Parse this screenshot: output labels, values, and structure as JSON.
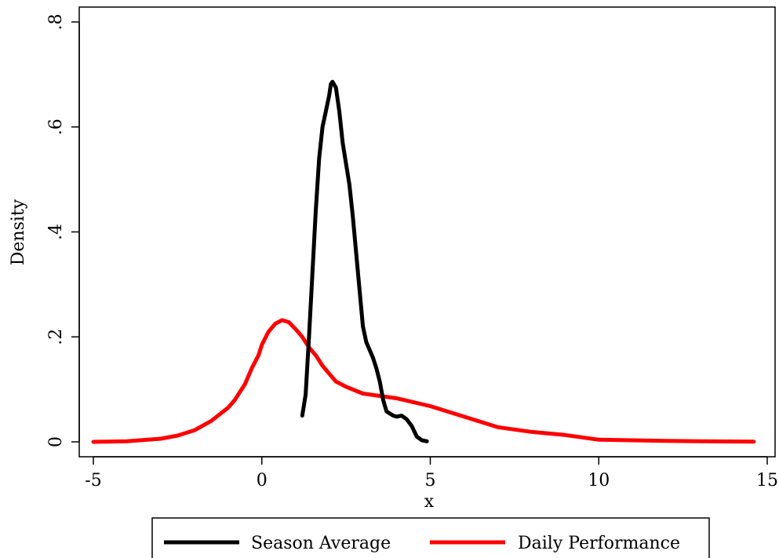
{
  "chart_data": {
    "type": "line",
    "title": "",
    "xlabel": "x",
    "ylabel": "Density",
    "xlim": [
      -5,
      15
    ],
    "ylim": [
      0,
      0.8
    ],
    "x_ticks": [
      -5,
      0,
      5,
      10,
      15
    ],
    "x_tick_labels": [
      "-5",
      "0",
      "5",
      "10",
      "15"
    ],
    "y_ticks": [
      0,
      0.2,
      0.4,
      0.6,
      0.8
    ],
    "y_tick_labels": [
      "0",
      ".2",
      ".4",
      ".6",
      ".8"
    ],
    "grid": false,
    "legend_position": "bottom",
    "series": [
      {
        "name": "Season Average",
        "color": "#000000",
        "points": [
          [
            1.2,
            0.05
          ],
          [
            1.3,
            0.09
          ],
          [
            1.4,
            0.2
          ],
          [
            1.5,
            0.32
          ],
          [
            1.6,
            0.44
          ],
          [
            1.7,
            0.54
          ],
          [
            1.8,
            0.6
          ],
          [
            1.9,
            0.63
          ],
          [
            2.0,
            0.66
          ],
          [
            2.05,
            0.682
          ],
          [
            2.1,
            0.686
          ],
          [
            2.2,
            0.675
          ],
          [
            2.3,
            0.63
          ],
          [
            2.4,
            0.57
          ],
          [
            2.5,
            0.53
          ],
          [
            2.6,
            0.49
          ],
          [
            2.7,
            0.43
          ],
          [
            2.8,
            0.36
          ],
          [
            2.9,
            0.29
          ],
          [
            3.0,
            0.22
          ],
          [
            3.1,
            0.19
          ],
          [
            3.3,
            0.16
          ],
          [
            3.4,
            0.14
          ],
          [
            3.5,
            0.115
          ],
          [
            3.6,
            0.08
          ],
          [
            3.7,
            0.058
          ],
          [
            3.9,
            0.05
          ],
          [
            4.0,
            0.048
          ],
          [
            4.15,
            0.05
          ],
          [
            4.3,
            0.043
          ],
          [
            4.45,
            0.03
          ],
          [
            4.6,
            0.01
          ],
          [
            4.75,
            0.003
          ],
          [
            4.9,
            0.001
          ]
        ]
      },
      {
        "name": "Daily Performance",
        "color": "#ff0000",
        "points": [
          [
            -5.0,
            0.0
          ],
          [
            -4.0,
            0.001
          ],
          [
            -3.0,
            0.006
          ],
          [
            -2.5,
            0.012
          ],
          [
            -2.0,
            0.022
          ],
          [
            -1.5,
            0.04
          ],
          [
            -1.2,
            0.055
          ],
          [
            -1.0,
            0.065
          ],
          [
            -0.8,
            0.08
          ],
          [
            -0.5,
            0.11
          ],
          [
            -0.3,
            0.14
          ],
          [
            -0.1,
            0.165
          ],
          [
            0.0,
            0.185
          ],
          [
            0.2,
            0.21
          ],
          [
            0.4,
            0.225
          ],
          [
            0.6,
            0.232
          ],
          [
            0.8,
            0.228
          ],
          [
            1.0,
            0.215
          ],
          [
            1.2,
            0.2
          ],
          [
            1.4,
            0.18
          ],
          [
            1.6,
            0.165
          ],
          [
            1.8,
            0.145
          ],
          [
            2.0,
            0.13
          ],
          [
            2.2,
            0.115
          ],
          [
            2.5,
            0.105
          ],
          [
            3.0,
            0.092
          ],
          [
            4.0,
            0.083
          ],
          [
            5.0,
            0.068
          ],
          [
            6.0,
            0.048
          ],
          [
            7.0,
            0.028
          ],
          [
            8.0,
            0.019
          ],
          [
            9.0,
            0.013
          ],
          [
            10.0,
            0.004
          ],
          [
            11.0,
            0.003
          ],
          [
            12.0,
            0.002
          ],
          [
            13.0,
            0.001
          ],
          [
            14.6,
            0.0005
          ]
        ]
      }
    ]
  }
}
